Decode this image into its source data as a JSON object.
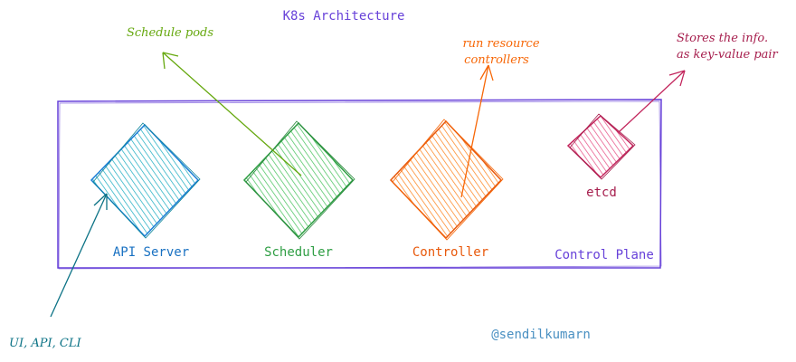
{
  "title": "K8s Architecture",
  "group_label": "Control Plane",
  "credit": "@sendilkumarn",
  "components": [
    {
      "label": "API Server",
      "color": "#1971c2",
      "fill": "#15aabf"
    },
    {
      "label": "Scheduler",
      "color": "#2f9e44",
      "fill": "#40c057"
    },
    {
      "label": "Controller",
      "color": "#e8590c",
      "fill": "#fd7e14"
    },
    {
      "label": "etcd",
      "color": "#a61e4d",
      "fill": "#e64980"
    }
  ],
  "annotations": {
    "scheduler": "Schedule pods",
    "controller_line1": "run resource",
    "controller_line2": "controllers",
    "etcd_line1": "Stores the info.",
    "etcd_line2": "as key-value pair",
    "api_server": "UI, API, CLI"
  },
  "colors": {
    "title": "#6741d9",
    "frame": "#6741d9",
    "credit": "#4a90c2",
    "api_annotation": "#0b7285"
  }
}
